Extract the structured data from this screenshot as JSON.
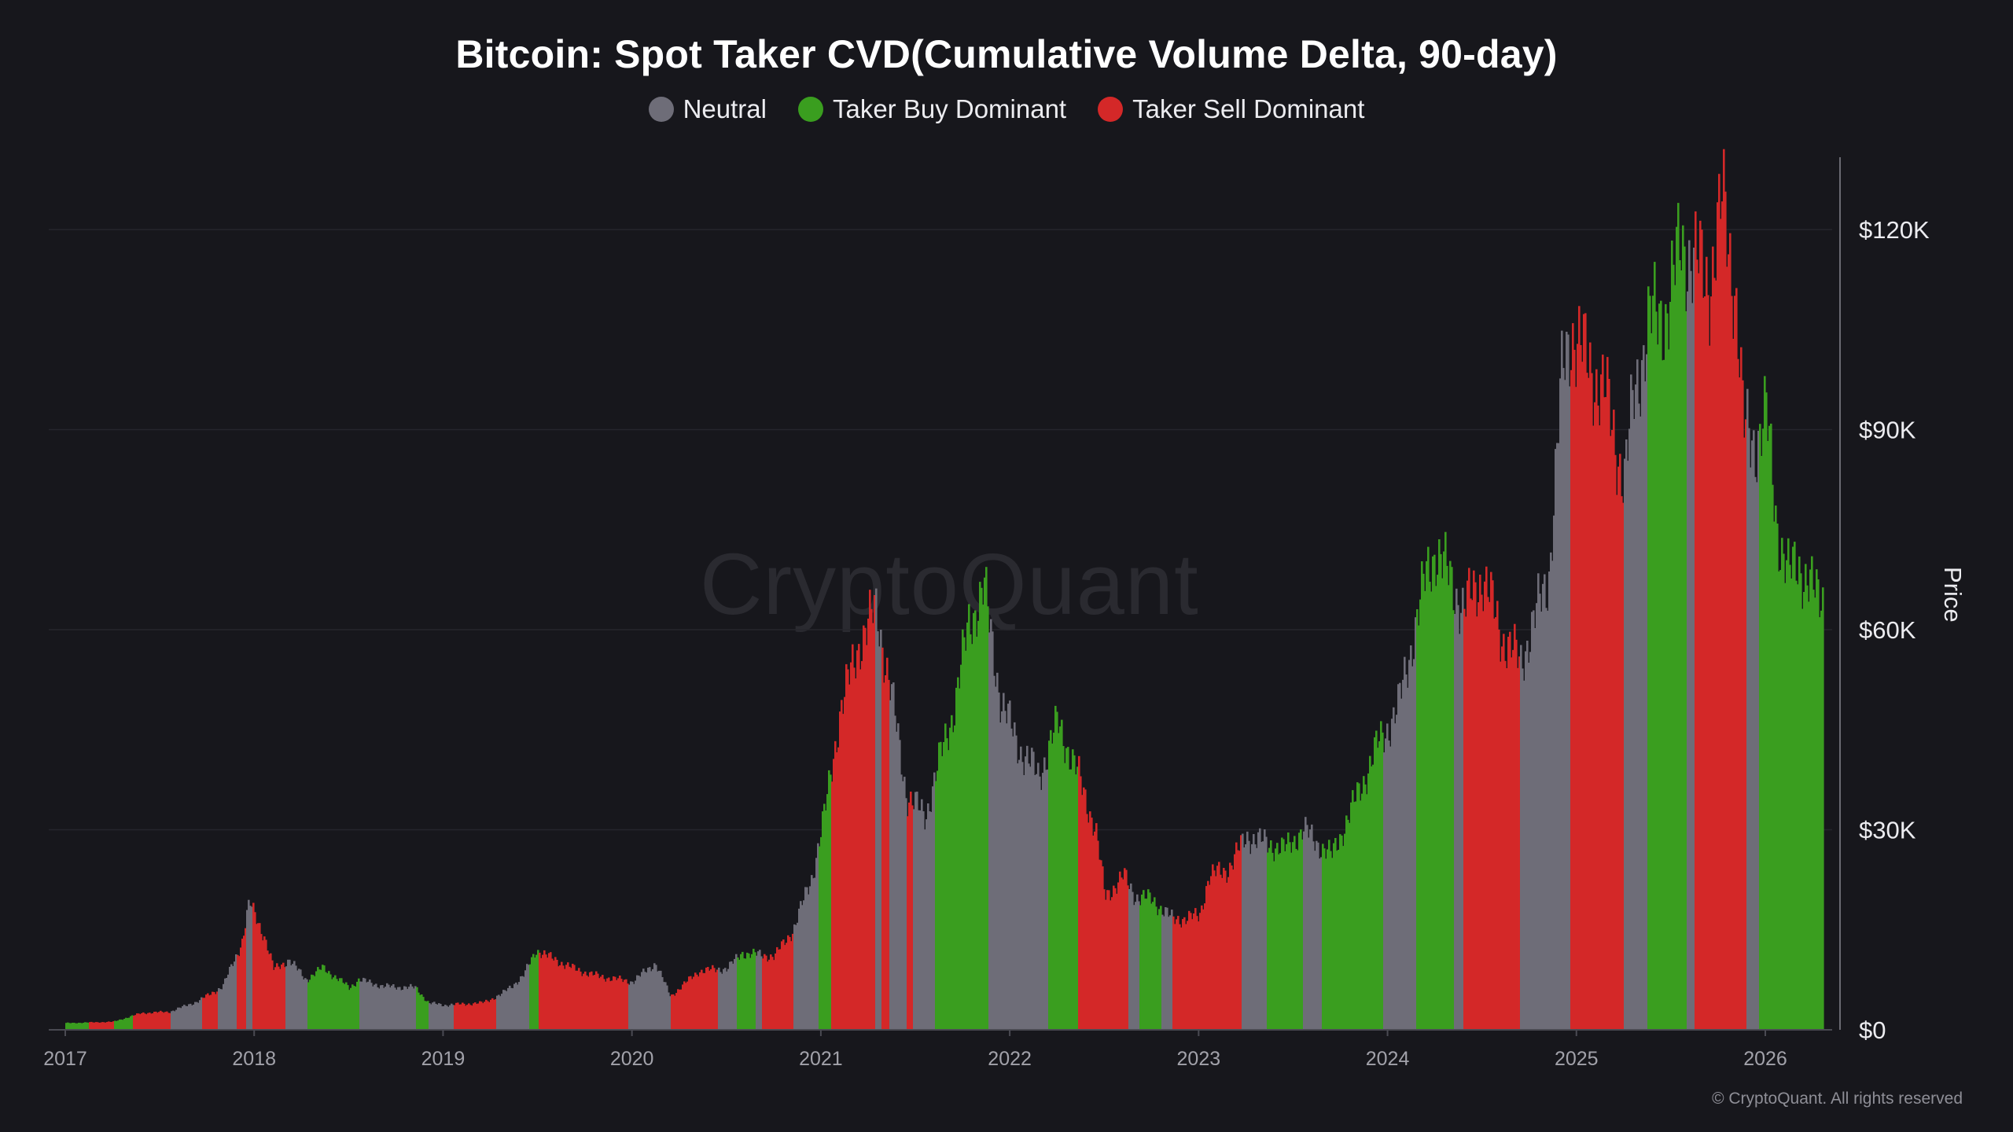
{
  "chart_data": {
    "type": "bar",
    "title": "Bitcoin: Spot Taker CVD(Cumulative Volume Delta, 90-day)",
    "ylabel": "Price",
    "xlabel": "",
    "ylim": [
      0,
      130000
    ],
    "xlim": [
      2017.0,
      2026.3
    ],
    "y_ticks": [
      {
        "value": 0,
        "label": "$0"
      },
      {
        "value": 30000,
        "label": "$30K"
      },
      {
        "value": 60000,
        "label": "$60K"
      },
      {
        "value": 90000,
        "label": "$90K"
      },
      {
        "value": 120000,
        "label": "$120K"
      }
    ],
    "x_ticks": [
      {
        "value": 2017,
        "label": "2017"
      },
      {
        "value": 2018,
        "label": "2018"
      },
      {
        "value": 2019,
        "label": "2019"
      },
      {
        "value": 2020,
        "label": "2020"
      },
      {
        "value": 2021,
        "label": "2021"
      },
      {
        "value": 2022,
        "label": "2022"
      },
      {
        "value": 2023,
        "label": "2023"
      },
      {
        "value": 2024,
        "label": "2024"
      },
      {
        "value": 2025,
        "label": "2025"
      },
      {
        "value": 2026,
        "label": "2026"
      }
    ],
    "legend": [
      {
        "name": "Neutral",
        "color": "#6e6d78"
      },
      {
        "name": "Taker Buy Dominant",
        "color": "#3a9e1f"
      },
      {
        "name": "Taker Sell Dominant",
        "color": "#d42828"
      }
    ],
    "price_points": [
      [
        2017.0,
        1000
      ],
      [
        2017.25,
        1200
      ],
      [
        2017.4,
        2500
      ],
      [
        2017.55,
        2700
      ],
      [
        2017.7,
        4300
      ],
      [
        2017.83,
        6500
      ],
      [
        2017.93,
        13000
      ],
      [
        2017.97,
        19000
      ],
      [
        2018.05,
        14000
      ],
      [
        2018.1,
        9000
      ],
      [
        2018.18,
        10500
      ],
      [
        2018.27,
        7500
      ],
      [
        2018.36,
        9300
      ],
      [
        2018.5,
        6300
      ],
      [
        2018.55,
        7500
      ],
      [
        2018.68,
        6500
      ],
      [
        2018.85,
        6300
      ],
      [
        2018.92,
        4000
      ],
      [
        2019.0,
        3700
      ],
      [
        2019.2,
        4000
      ],
      [
        2019.3,
        5200
      ],
      [
        2019.42,
        8000
      ],
      [
        2019.49,
        12000
      ],
      [
        2019.55,
        11000
      ],
      [
        2019.7,
        9000
      ],
      [
        2019.82,
        8000
      ],
      [
        2020.0,
        7200
      ],
      [
        2020.12,
        10000
      ],
      [
        2020.2,
        5000
      ],
      [
        2020.35,
        8800
      ],
      [
        2020.5,
        9200
      ],
      [
        2020.58,
        11500
      ],
      [
        2020.75,
        11000
      ],
      [
        2020.85,
        15000
      ],
      [
        2020.95,
        23000
      ],
      [
        2021.02,
        33000
      ],
      [
        2021.1,
        48000
      ],
      [
        2021.2,
        58000
      ],
      [
        2021.29,
        63000
      ],
      [
        2021.37,
        50000
      ],
      [
        2021.45,
        35000
      ],
      [
        2021.55,
        32000
      ],
      [
        2021.62,
        40000
      ],
      [
        2021.7,
        48000
      ],
      [
        2021.78,
        61000
      ],
      [
        2021.86,
        66000
      ],
      [
        2021.95,
        49000
      ],
      [
        2022.05,
        42000
      ],
      [
        2022.15,
        38000
      ],
      [
        2022.25,
        46000
      ],
      [
        2022.36,
        38000
      ],
      [
        2022.45,
        30000
      ],
      [
        2022.5,
        20000
      ],
      [
        2022.6,
        23000
      ],
      [
        2022.66,
        20000
      ],
      [
        2022.75,
        19500
      ],
      [
        2022.86,
        16500
      ],
      [
        2023.0,
        17000
      ],
      [
        2023.05,
        23000
      ],
      [
        2023.15,
        24000
      ],
      [
        2023.25,
        29000
      ],
      [
        2023.45,
        27000
      ],
      [
        2023.55,
        30000
      ],
      [
        2023.7,
        26000
      ],
      [
        2023.82,
        34000
      ],
      [
        2023.95,
        43000
      ],
      [
        2024.05,
        48000
      ],
      [
        2024.2,
        68000
      ],
      [
        2024.25,
        72000
      ],
      [
        2024.4,
        63000
      ],
      [
        2024.5,
        68000
      ],
      [
        2024.6,
        59000
      ],
      [
        2024.7,
        55000
      ],
      [
        2024.78,
        62000
      ],
      [
        2024.85,
        68000
      ],
      [
        2024.92,
        98000
      ],
      [
        2024.97,
        105000
      ],
      [
        2025.05,
        100000
      ],
      [
        2025.15,
        95000
      ],
      [
        2025.25,
        82000
      ],
      [
        2025.3,
        95000
      ],
      [
        2025.38,
        106000
      ],
      [
        2025.48,
        108000
      ],
      [
        2025.55,
        118000
      ],
      [
        2025.62,
        115000
      ],
      [
        2025.7,
        112000
      ],
      [
        2025.77,
        124000
      ],
      [
        2025.84,
        110000
      ],
      [
        2025.88,
        90000
      ],
      [
        2025.94,
        88000
      ],
      [
        2026.0,
        92000
      ],
      [
        2026.06,
        75000
      ],
      [
        2026.12,
        68000
      ],
      [
        2026.17,
        70000
      ],
      [
        2026.26,
        65000
      ]
    ],
    "regimes": [
      [
        2017.0,
        2017.12,
        "buy"
      ],
      [
        2017.12,
        2017.25,
        "sell"
      ],
      [
        2017.25,
        2017.35,
        "buy"
      ],
      [
        2017.35,
        2017.55,
        "sell"
      ],
      [
        2017.55,
        2017.72,
        "neutral"
      ],
      [
        2017.72,
        2017.8,
        "sell"
      ],
      [
        2017.8,
        2017.9,
        "neutral"
      ],
      [
        2017.9,
        2017.95,
        "sell"
      ],
      [
        2017.95,
        2017.99,
        "neutral"
      ],
      [
        2017.99,
        2018.16,
        "sell"
      ],
      [
        2018.16,
        2018.28,
        "neutral"
      ],
      [
        2018.28,
        2018.55,
        "buy"
      ],
      [
        2018.55,
        2018.85,
        "neutral"
      ],
      [
        2018.85,
        2018.92,
        "buy"
      ],
      [
        2018.92,
        2019.05,
        "neutral"
      ],
      [
        2019.05,
        2019.28,
        "sell"
      ],
      [
        2019.28,
        2019.45,
        "neutral"
      ],
      [
        2019.45,
        2019.5,
        "buy"
      ],
      [
        2019.5,
        2019.98,
        "sell"
      ],
      [
        2019.98,
        2020.2,
        "neutral"
      ],
      [
        2020.2,
        2020.45,
        "sell"
      ],
      [
        2020.45,
        2020.55,
        "neutral"
      ],
      [
        2020.55,
        2020.65,
        "buy"
      ],
      [
        2020.65,
        2020.68,
        "neutral"
      ],
      [
        2020.68,
        2020.85,
        "sell"
      ],
      [
        2020.85,
        2020.98,
        "neutral"
      ],
      [
        2020.98,
        2021.05,
        "buy"
      ],
      [
        2021.05,
        2021.28,
        "sell"
      ],
      [
        2021.28,
        2021.32,
        "neutral"
      ],
      [
        2021.32,
        2021.36,
        "sell"
      ],
      [
        2021.36,
        2021.45,
        "neutral"
      ],
      [
        2021.45,
        2021.48,
        "sell"
      ],
      [
        2021.48,
        2021.6,
        "neutral"
      ],
      [
        2021.6,
        2021.88,
        "buy"
      ],
      [
        2021.88,
        2022.2,
        "neutral"
      ],
      [
        2022.2,
        2022.36,
        "buy"
      ],
      [
        2022.36,
        2022.45,
        "sell"
      ],
      [
        2022.45,
        2022.62,
        "sell"
      ],
      [
        2022.62,
        2022.68,
        "neutral"
      ],
      [
        2022.68,
        2022.8,
        "buy"
      ],
      [
        2022.8,
        2022.86,
        "neutral"
      ],
      [
        2022.86,
        2023.22,
        "sell"
      ],
      [
        2023.22,
        2023.36,
        "neutral"
      ],
      [
        2023.36,
        2023.55,
        "buy"
      ],
      [
        2023.55,
        2023.65,
        "neutral"
      ],
      [
        2023.65,
        2023.82,
        "buy"
      ],
      [
        2023.82,
        2023.97,
        "buy"
      ],
      [
        2023.97,
        2024.15,
        "neutral"
      ],
      [
        2024.15,
        2024.35,
        "buy"
      ],
      [
        2024.35,
        2024.4,
        "neutral"
      ],
      [
        2024.4,
        2024.7,
        "sell"
      ],
      [
        2024.7,
        2024.92,
        "neutral"
      ],
      [
        2024.92,
        2024.96,
        "neutral"
      ],
      [
        2024.96,
        2025.25,
        "sell"
      ],
      [
        2025.25,
        2025.37,
        "neutral"
      ],
      [
        2025.37,
        2025.58,
        "buy"
      ],
      [
        2025.58,
        2025.62,
        "neutral"
      ],
      [
        2025.62,
        2025.9,
        "sell"
      ],
      [
        2025.9,
        2025.96,
        "neutral"
      ],
      [
        2025.96,
        2026.26,
        "buy"
      ]
    ]
  },
  "footer": {
    "copyright": "© CryptoQuant. All rights reserved"
  },
  "watermark": "CryptoQuant"
}
